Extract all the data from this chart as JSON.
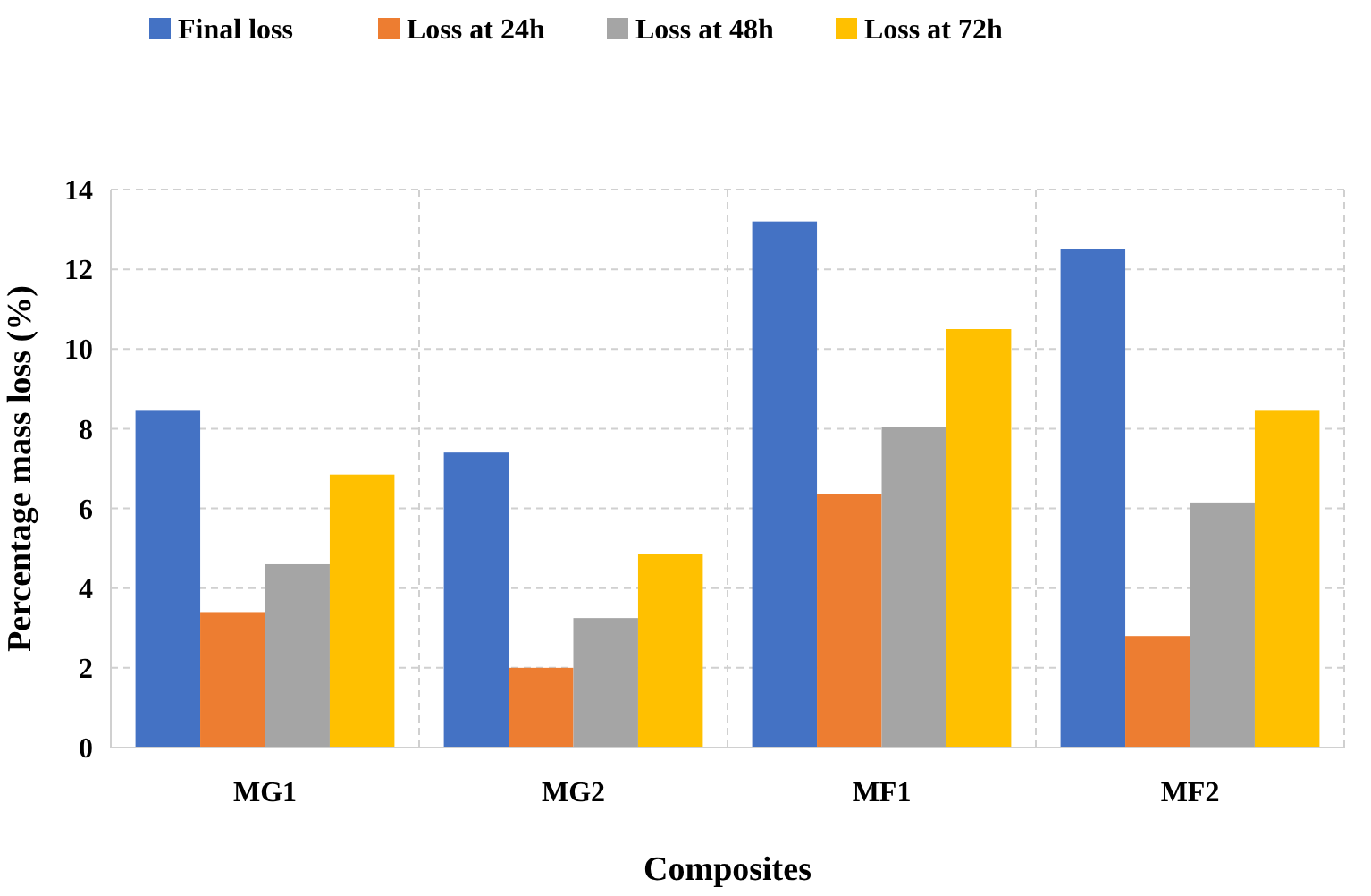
{
  "chart_data": {
    "type": "bar",
    "xlabel": "Composites",
    "ylabel": "Percentage mass loss (%)",
    "categories": [
      "MG1",
      "MG2",
      "MF1",
      "MF2"
    ],
    "series": [
      {
        "name": "Final loss",
        "color": "#4472c4",
        "values": [
          8.45,
          7.4,
          13.2,
          12.5
        ]
      },
      {
        "name": "Loss at 24h",
        "color": "#ed7d31",
        "values": [
          3.4,
          2.0,
          6.35,
          2.8
        ]
      },
      {
        "name": "Loss at 48h",
        "color": "#a5a5a5",
        "values": [
          4.6,
          3.25,
          8.05,
          6.15
        ]
      },
      {
        "name": "Loss at 72h",
        "color": "#ffc000",
        "values": [
          6.85,
          4.85,
          10.5,
          8.45
        ]
      }
    ],
    "ylim": [
      0,
      14
    ],
    "yticks": [
      0,
      2,
      4,
      6,
      8,
      10,
      12,
      14
    ],
    "grid": true,
    "legend": "top"
  }
}
